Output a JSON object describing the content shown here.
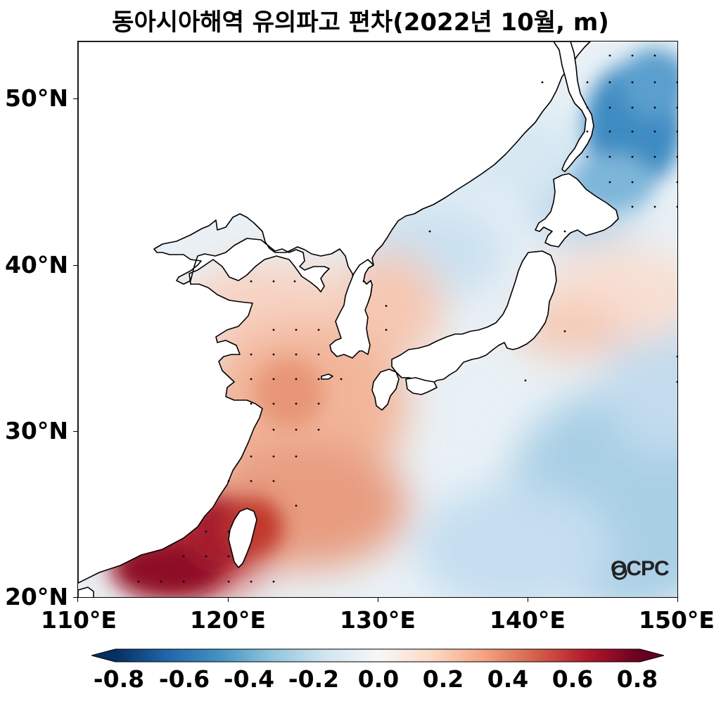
{
  "title": "동아시아해역 유의파고 편차(2022년 10월, m)",
  "lat_labels": [
    "50°N",
    "40°N",
    "30°N",
    "20°N"
  ],
  "lon_labels": [
    "110°E",
    "120°E",
    "130°E",
    "140°E",
    "150°E"
  ],
  "colorbar_labels": [
    "-0.8",
    "-0.6",
    "-0.4",
    "-0.2",
    "0.0",
    "0.2",
    "0.4",
    "0.6",
    "0.8"
  ],
  "logo_text": "OCPC",
  "colormap": [
    "#053061",
    "#2166ac",
    "#4393c3",
    "#92c5de",
    "#d1e5f0",
    "#f7f7f7",
    "#fddbc7",
    "#f4a582",
    "#d6604d",
    "#b2182b",
    "#67001f"
  ],
  "chart_data": {
    "type": "heatmap",
    "title": "동아시아해역 유의파고 편차(2022년 10월, m)",
    "xlim": [
      110,
      150
    ],
    "ylim": [
      20,
      53.5
    ],
    "clim": [
      -0.8,
      0.8
    ],
    "x_ticks": [
      110,
      120,
      130,
      140,
      150
    ],
    "y_ticks": [
      20,
      30,
      40,
      50
    ]
  }
}
